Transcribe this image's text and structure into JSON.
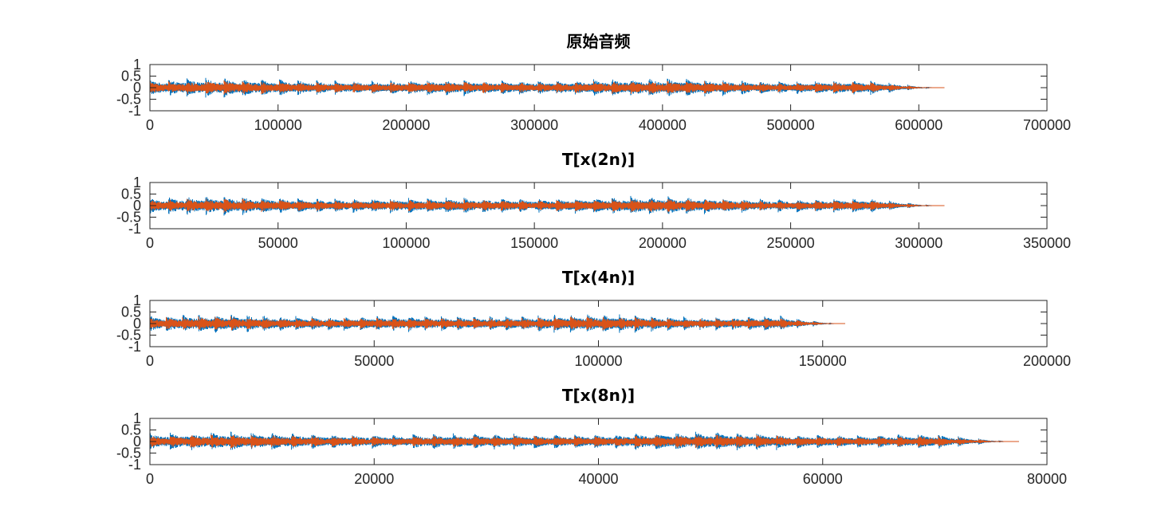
{
  "colors": {
    "series1": "#0072BD",
    "series2": "#D95319",
    "axes": "#262626"
  },
  "chart_data": [
    {
      "type": "line",
      "title": "原始音频",
      "xlim": [
        0,
        700000
      ],
      "ylim": [
        -1,
        1
      ],
      "xticks": [
        0,
        100000,
        200000,
        300000,
        400000,
        500000,
        600000,
        700000
      ],
      "xtick_labels": [
        "0",
        "100000",
        "200000",
        "300000",
        "400000",
        "500000",
        "600000",
        "700000"
      ],
      "yticks": [
        -1,
        -0.5,
        0,
        0.5,
        1
      ],
      "ytick_labels": [
        "-1",
        "-0.5",
        "0",
        "0.5",
        "1"
      ],
      "signal_length": 620000,
      "fade_start": 560000,
      "series": [
        {
          "color": "#0072BD",
          "peak": 0.45
        },
        {
          "color": "#D95319",
          "peak": 0.33
        }
      ]
    },
    {
      "type": "line",
      "title": "T[x(2n)]",
      "xlim": [
        0,
        350000
      ],
      "ylim": [
        -1,
        1
      ],
      "xticks": [
        0,
        50000,
        100000,
        150000,
        200000,
        250000,
        300000,
        350000
      ],
      "xtick_labels": [
        "0",
        "50000",
        "100000",
        "150000",
        "200000",
        "250000",
        "300000",
        "350000"
      ],
      "yticks": [
        -1,
        -0.5,
        0,
        0.5,
        1
      ],
      "ytick_labels": [
        "-1",
        "-0.5",
        "0",
        "0.5",
        "1"
      ],
      "signal_length": 310000,
      "fade_start": 280000,
      "series": [
        {
          "color": "#0072BD",
          "peak": 0.45
        },
        {
          "color": "#D95319",
          "peak": 0.33
        }
      ]
    },
    {
      "type": "line",
      "title": "T[x(4n)]",
      "xlim": [
        0,
        200000
      ],
      "ylim": [
        -1,
        1
      ],
      "xticks": [
        0,
        50000,
        100000,
        150000,
        200000
      ],
      "xtick_labels": [
        "0",
        "50000",
        "100000",
        "150000",
        "200000"
      ],
      "yticks": [
        -1,
        -0.5,
        0,
        0.5,
        1
      ],
      "ytick_labels": [
        "-1",
        "-0.5",
        "0",
        "0.5",
        "1"
      ],
      "signal_length": 155000,
      "fade_start": 140000,
      "series": [
        {
          "color": "#0072BD",
          "peak": 0.45
        },
        {
          "color": "#D95319",
          "peak": 0.33
        }
      ]
    },
    {
      "type": "line",
      "title": "T[x(8n)]",
      "xlim": [
        0,
        80000
      ],
      "ylim": [
        -1,
        1
      ],
      "xticks": [
        0,
        20000,
        40000,
        60000,
        80000
      ],
      "xtick_labels": [
        "0",
        "20000",
        "40000",
        "60000",
        "80000"
      ],
      "yticks": [
        -1,
        -0.5,
        0,
        0.5,
        1
      ],
      "ytick_labels": [
        "-1",
        "-0.5",
        "0",
        "0.5",
        "1"
      ],
      "signal_length": 77500,
      "fade_start": 70000,
      "series": [
        {
          "color": "#0072BD",
          "peak": 0.45
        },
        {
          "color": "#D95319",
          "peak": 0.33
        }
      ]
    }
  ]
}
